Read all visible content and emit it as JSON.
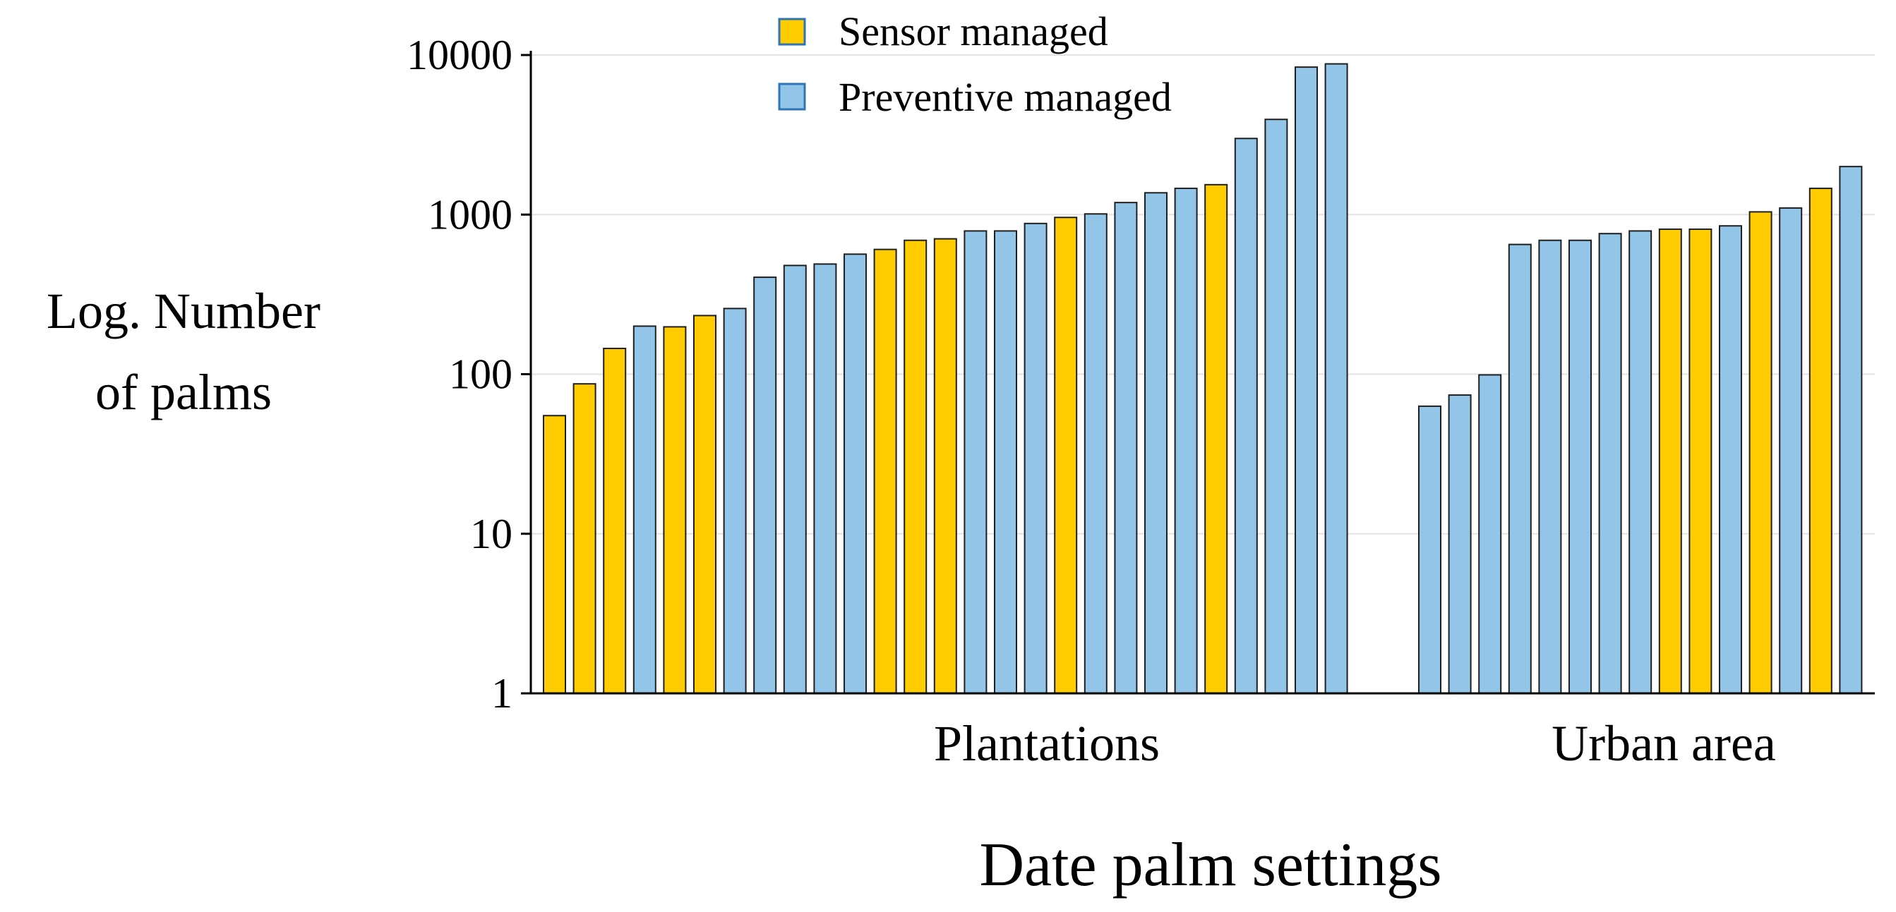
{
  "chart_data": {
    "type": "bar",
    "title": "",
    "xlabel": "Date palm settings",
    "ylabel_lines": [
      "Log. Number",
      "of palms"
    ],
    "yscale": "log",
    "ylim": [
      1,
      10000
    ],
    "yticks": [
      1,
      10,
      100,
      1000,
      10000
    ],
    "ytick_labels": [
      "1",
      "10",
      "100",
      "1000",
      "10000"
    ],
    "grid": true,
    "legend_position": "top-center",
    "legend": [
      {
        "key": "sensor",
        "label": "Sensor managed",
        "color": "#FFCC00"
      },
      {
        "key": "preventive",
        "label": "Preventive managed",
        "color": "#92C5E8"
      }
    ],
    "groups": [
      {
        "name": "Plantations",
        "bars": [
          {
            "type": "sensor",
            "value": 55
          },
          {
            "type": "sensor",
            "value": 87
          },
          {
            "type": "sensor",
            "value": 145
          },
          {
            "type": "preventive",
            "value": 200
          },
          {
            "type": "sensor",
            "value": 198
          },
          {
            "type": "sensor",
            "value": 233
          },
          {
            "type": "preventive",
            "value": 258
          },
          {
            "type": "preventive",
            "value": 405
          },
          {
            "type": "preventive",
            "value": 480
          },
          {
            "type": "preventive",
            "value": 490
          },
          {
            "type": "preventive",
            "value": 565
          },
          {
            "type": "sensor",
            "value": 605
          },
          {
            "type": "sensor",
            "value": 690
          },
          {
            "type": "sensor",
            "value": 705
          },
          {
            "type": "preventive",
            "value": 790
          },
          {
            "type": "preventive",
            "value": 790
          },
          {
            "type": "preventive",
            "value": 880
          },
          {
            "type": "sensor",
            "value": 960
          },
          {
            "type": "preventive",
            "value": 1010
          },
          {
            "type": "preventive",
            "value": 1190
          },
          {
            "type": "preventive",
            "value": 1370
          },
          {
            "type": "preventive",
            "value": 1460
          },
          {
            "type": "sensor",
            "value": 1540
          },
          {
            "type": "preventive",
            "value": 3000
          },
          {
            "type": "preventive",
            "value": 3950
          },
          {
            "type": "preventive",
            "value": 8400
          },
          {
            "type": "preventive",
            "value": 8800
          }
        ]
      },
      {
        "name": "Urban area",
        "bars": [
          {
            "type": "preventive",
            "value": 63
          },
          {
            "type": "preventive",
            "value": 74
          },
          {
            "type": "preventive",
            "value": 99
          },
          {
            "type": "preventive",
            "value": 650
          },
          {
            "type": "preventive",
            "value": 690
          },
          {
            "type": "preventive",
            "value": 690
          },
          {
            "type": "preventive",
            "value": 760
          },
          {
            "type": "preventive",
            "value": 790
          },
          {
            "type": "sensor",
            "value": 810
          },
          {
            "type": "sensor",
            "value": 810
          },
          {
            "type": "preventive",
            "value": 850
          },
          {
            "type": "sensor",
            "value": 1040
          },
          {
            "type": "preventive",
            "value": 1100
          },
          {
            "type": "sensor",
            "value": 1460
          },
          {
            "type": "preventive",
            "value": 2000
          }
        ]
      }
    ]
  }
}
